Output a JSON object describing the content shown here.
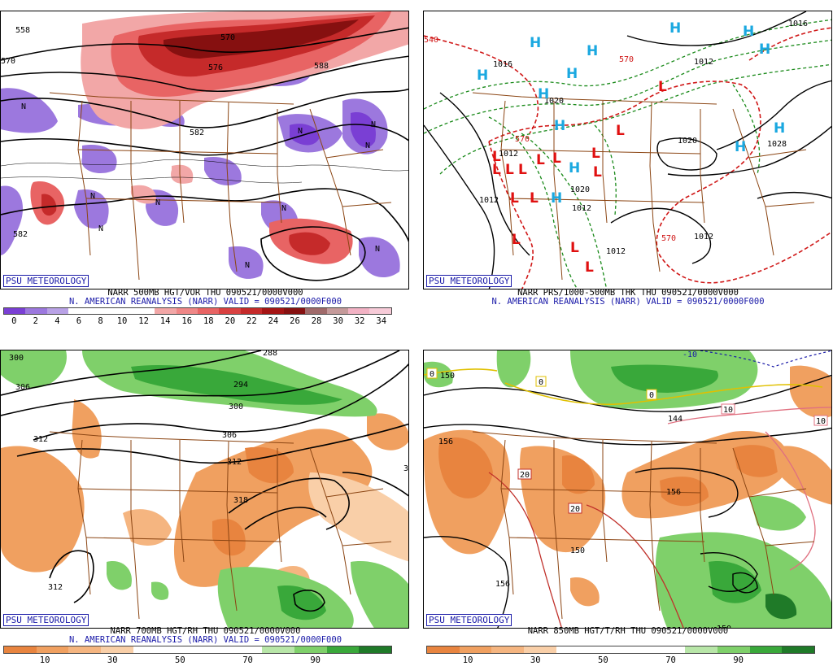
{
  "panels": [
    {
      "id": "vor500",
      "title_line1": "NARR 500MB HGT/VOR THU 090521/0000V000",
      "title_line2": "N. AMERICAN REANALYSIS (NARR) VALID = 090521/0000F000",
      "logo": "PSU METEOROLOGY",
      "contour_labels": [
        "558",
        "570",
        "582",
        "582",
        "576",
        "588",
        "570",
        "N",
        "N",
        "N",
        "N",
        "N",
        "N",
        "N",
        "N",
        "N",
        "N"
      ],
      "colorbar": {
        "colors": [
          "#7a3fd4",
          "#9c78de",
          "#b9a2e6",
          "#ffffff",
          "#ffffff",
          "#ffffff",
          "#ffffff",
          "#f2a7a7",
          "#ef8787",
          "#e86464",
          "#d94141",
          "#c52a2a",
          "#a51414",
          "#861010",
          "#a06a6a",
          "#c59a9a",
          "#f2b2c4",
          "#f7cbd8"
        ],
        "labels": [
          "0",
          "2",
          "4",
          "6",
          "8",
          "10",
          "12",
          "14",
          "16",
          "18",
          "20",
          "22",
          "24",
          "26",
          "28",
          "30",
          "32",
          "34"
        ]
      }
    },
    {
      "id": "prs",
      "title_line1": "NARR PRS/1000-500MB THK THU 090521/0000V000",
      "title_line2": "N. AMERICAN REANALYSIS (NARR) VALID = 090521/0000F000",
      "logo": "PSU METEOROLOGY",
      "contour_labels": [
        "540",
        "570",
        "570",
        "570",
        "1016",
        "1012",
        "1020",
        "1020",
        "1012",
        "1012",
        "1012",
        "1012",
        "1028",
        "1020",
        "1012",
        "1016"
      ],
      "highs": [
        "H",
        "H",
        "H",
        "H",
        "H",
        "H",
        "H",
        "H",
        "H",
        "H",
        "H",
        "H",
        "H"
      ],
      "lows": [
        "L",
        "L",
        "L",
        "L",
        "L",
        "L",
        "L",
        "L",
        "L",
        "L",
        "L",
        "L",
        "L",
        "L",
        "L"
      ]
    },
    {
      "id": "rh700",
      "title_line1": "NARR 700MB HGT/RH THU 090521/0000V000",
      "title_line2": "N. AMERICAN REANALYSIS (NARR) VALID = 090521/0000F000",
      "logo": "PSU METEOROLOGY",
      "contour_labels": [
        "300",
        "306",
        "312",
        "288",
        "294",
        "300",
        "306",
        "312",
        "318",
        "312",
        "3"
      ],
      "colorbar": {
        "colors": [
          "#e8843f",
          "#f0a060",
          "#f5b580",
          "#f9cfa8",
          "#ffffff",
          "#ffffff",
          "#ffffff",
          "#ffffff",
          "#b8e6a8",
          "#7fd06a",
          "#39a83a",
          "#1f7a28"
        ],
        "labels": [
          "10",
          "30",
          "50",
          "70",
          "90"
        ]
      }
    },
    {
      "id": "rh850",
      "title_line1": "NARR 850MB HGT/T/RH THU 090521/0000V000",
      "title_line2": "",
      "logo": "PSU METEOROLOGY",
      "contour_labels": [
        "150",
        "156",
        "144",
        "156",
        "150",
        "156",
        "150",
        "0",
        "0",
        "0",
        "10",
        "10",
        "20",
        "20",
        "-10"
      ],
      "colorbar": {
        "colors": [
          "#e8843f",
          "#f0a060",
          "#f5b580",
          "#f9cfa8",
          "#ffffff",
          "#ffffff",
          "#ffffff",
          "#ffffff",
          "#b8e6a8",
          "#7fd06a",
          "#39a83a",
          "#1f7a28"
        ],
        "labels": [
          "10",
          "30",
          "50",
          "70",
          "90"
        ]
      }
    }
  ]
}
